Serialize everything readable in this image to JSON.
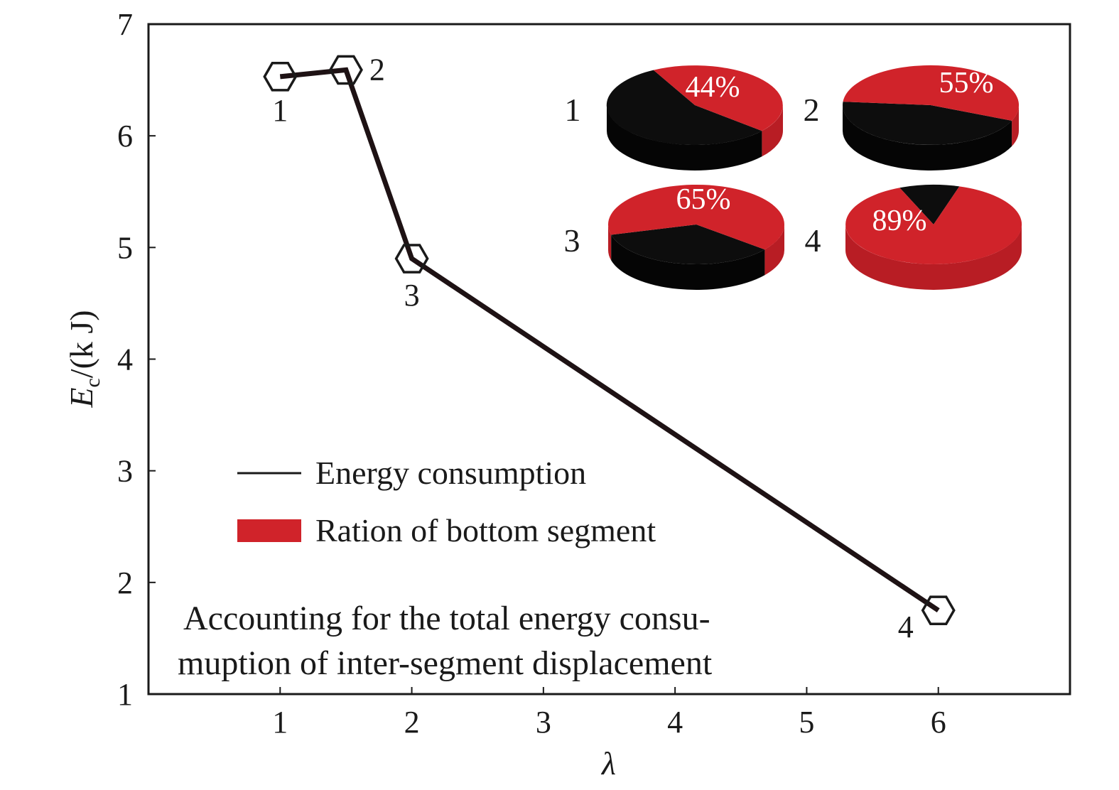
{
  "chart_data": {
    "type": "line",
    "xlabel": "λ",
    "ylabel": {
      "main": "E",
      "sub": "c",
      "unit": "/(k J)"
    },
    "xlim": [
      0,
      7
    ],
    "ylim": [
      1,
      7
    ],
    "x_ticks": [
      1,
      2,
      3,
      4,
      5,
      6
    ],
    "y_ticks": [
      1,
      2,
      3,
      4,
      5,
      6,
      7
    ],
    "grid": false,
    "legend_position": "lower-left",
    "series": [
      {
        "name": "Energy consumption",
        "marker": "hexagon",
        "color": "#1e1214",
        "points": [
          {
            "label": "1",
            "x": 1.0,
            "y": 6.53
          },
          {
            "label": "2",
            "x": 1.5,
            "y": 6.59
          },
          {
            "label": "3",
            "x": 2.0,
            "y": 4.9
          },
          {
            "label": "4",
            "x": 6.0,
            "y": 1.75
          }
        ]
      }
    ],
    "legend": [
      {
        "label": "Energy consumption",
        "kind": "line",
        "color": "#1a1a1a"
      },
      {
        "label": "Ration of bottom segment",
        "kind": "patch",
        "color": "#d0232a"
      }
    ],
    "pies": [
      {
        "label": "1",
        "value": 44,
        "text": "44%"
      },
      {
        "label": "2",
        "value": 55,
        "text": "55%"
      },
      {
        "label": "3",
        "value": 65,
        "text": "65%"
      },
      {
        "label": "4",
        "value": 89,
        "text": "89%"
      }
    ],
    "pie_colors": {
      "ratio": "#d0232a",
      "rest": "#0d0d0d"
    },
    "annotation": [
      "Accounting for the total energy consu-",
      "muption of inter-segment displacement"
    ]
  }
}
